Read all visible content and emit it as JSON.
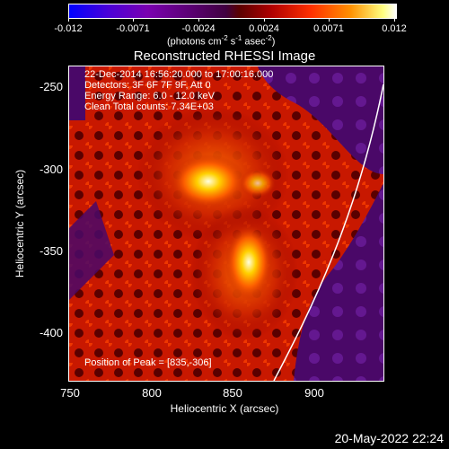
{
  "colorbar": {
    "ticks": [
      "-0.012",
      "-0.0071",
      "-0.0024",
      "0.0024",
      "0.0071",
      "0.012"
    ],
    "units_main": "(photons cm",
    "units_exp1": "-2",
    "units_mid1": " s",
    "units_exp2": "-1",
    "units_mid2": " asec",
    "units_exp3": "-2",
    "units_end": ")"
  },
  "title": "Reconstructed RHESSI Image",
  "info": {
    "time": "22-Dec-2014 16:56:20.000 to 17:00:16.000",
    "detectors": "Detectors: 3F 6F 7F 9F, Att 0",
    "energy": "Energy Range: 6.0 - 12.0 keV",
    "clean": "Clean     Total counts: 7.34E+03",
    "peak": "Position of Peak = [835,-306]"
  },
  "axes": {
    "xlabel": "Heliocentric X (arcsec)",
    "ylabel": "Heliocentric Y (arcsec)",
    "xticks": [
      "750",
      "800",
      "850",
      "900"
    ],
    "yticks": [
      "-250",
      "-300",
      "-350",
      "-400"
    ]
  },
  "footer": "20-May-2022 22:24"
}
